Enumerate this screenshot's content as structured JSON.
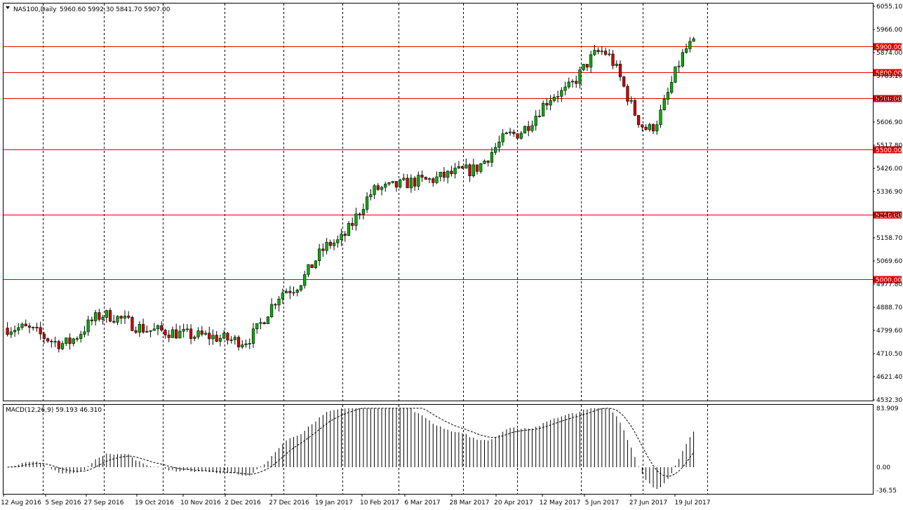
{
  "header": {
    "symbol": "NAS100,Daily",
    "ohlc": "5960.60 5992.30 5841.70 5907.00"
  },
  "macd": {
    "label": "MACD(12,26,9) 59.193 46.310",
    "axis_labels": [
      "83.909",
      "0.00",
      "-36.55"
    ],
    "axis_values": [
      83.909,
      0.0,
      -36.55
    ],
    "ylim": [
      -36.55,
      83.909
    ]
  },
  "chart_data": [
    {
      "type": "candlestick",
      "title": "NAS100,Daily",
      "ylim": [
        4532.3,
        6055.1
      ],
      "y_tick_labels": [
        "6055.10",
        "5966.00",
        "5874.00",
        "5783.10",
        "5695.00",
        "5606.90",
        "5517.80",
        "5426.00",
        "5336.90",
        "5247.80",
        "5158.70",
        "5069.60",
        "4977.80",
        "4888.70",
        "4799.60",
        "4710.50",
        "4621.40",
        "4532.30"
      ],
      "x_tick_labels": [
        "12 Aug 2016",
        "5 Sep 2016",
        "27 Sep 2016",
        "19 Oct 2016",
        "10 Nov 2016",
        "2 Dec 2016",
        "27 Dec 2016",
        "19 Jan 2017",
        "10 Feb 2017",
        "6 Mar 2017",
        "28 Mar 2017",
        "20 Apr 2017",
        "12 May 2017",
        "5 Jun 2017",
        "27 Jun 2017",
        "19 Jul 2017"
      ],
      "levels": [
        {
          "value": 5900,
          "label": "5900.00"
        },
        {
          "value": 5800,
          "label": "5800.00"
        },
        {
          "value": 5700,
          "label": "5700.00"
        },
        {
          "value": 5500,
          "label": "5500.00"
        },
        {
          "value": 5250,
          "label": "5250.00"
        },
        {
          "value": 5000,
          "label": "5000.00"
        }
      ],
      "close_path": [
        [
          "12 Aug 2016",
          4810
        ],
        [
          "5 Sep 2016",
          4750
        ],
        [
          "27 Sep 2016",
          4860
        ],
        [
          "19 Oct 2016",
          4800
        ],
        [
          "10 Nov 2016",
          4780
        ],
        [
          "2 Dec 2016",
          4760
        ],
        [
          "27 Dec 2016",
          4960
        ],
        [
          "19 Jan 2017",
          5140
        ],
        [
          "10 Feb 2017",
          5350
        ],
        [
          "6 Mar 2017",
          5380
        ],
        [
          "28 Mar 2017",
          5420
        ],
        [
          "20 Apr 2017",
          5560
        ],
        [
          "12 May 2017",
          5720
        ],
        [
          "5 Jun 2017",
          5880
        ],
        [
          "27 Jun 2017",
          5580
        ],
        [
          "19 Jul 2017",
          5907
        ]
      ]
    }
  ],
  "colors": {
    "up_body": "#00b000",
    "down_body": "#d00000",
    "wick": "#000000",
    "level_line": "#e00000",
    "level_label_bg": "#e00000",
    "grid": "#000000"
  }
}
